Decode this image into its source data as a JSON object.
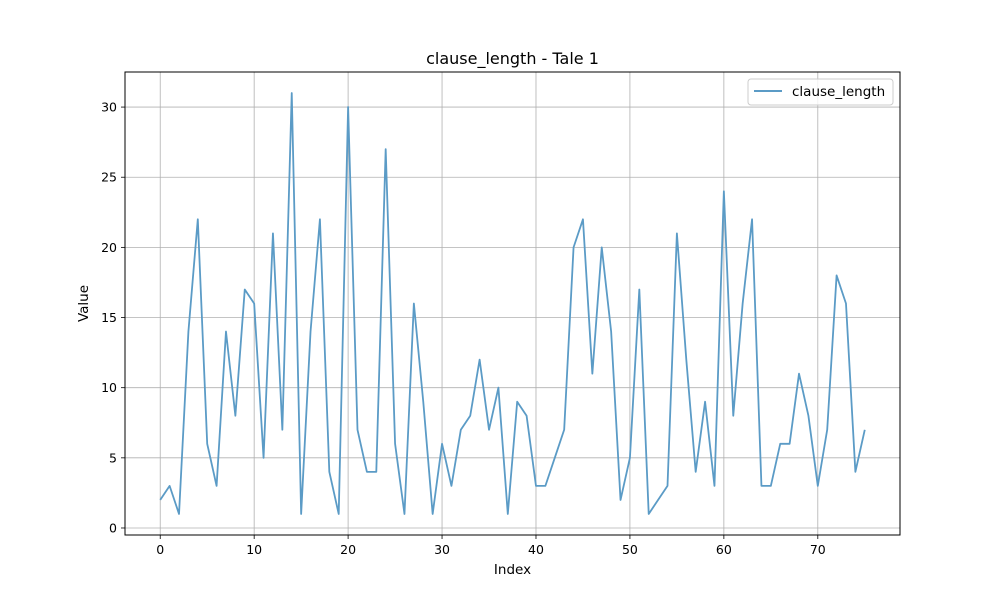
{
  "chart_data": {
    "type": "line",
    "title": "clause_length - Tale 1",
    "xlabel": "Index",
    "ylabel": "Value",
    "xlim": [
      -3.75,
      78.75
    ],
    "ylim": [
      -0.5,
      32.5
    ],
    "xticks": [
      0,
      10,
      20,
      30,
      40,
      50,
      60,
      70
    ],
    "yticks": [
      0,
      5,
      10,
      15,
      20,
      25,
      30
    ],
    "grid": true,
    "legend_position": "top-right",
    "series": [
      {
        "name": "clause_length",
        "color": "#5b9bc6",
        "x": [
          0,
          1,
          2,
          3,
          4,
          5,
          6,
          7,
          8,
          9,
          10,
          11,
          12,
          13,
          14,
          15,
          16,
          17,
          18,
          19,
          20,
          21,
          22,
          23,
          24,
          25,
          26,
          27,
          28,
          29,
          30,
          31,
          32,
          33,
          34,
          35,
          36,
          37,
          38,
          39,
          40,
          41,
          42,
          43,
          44,
          45,
          46,
          47,
          48,
          49,
          50,
          51,
          52,
          53,
          54,
          55,
          56,
          57,
          58,
          59,
          60,
          61,
          62,
          63,
          64,
          65,
          66,
          67,
          68,
          69,
          70,
          71,
          72,
          73,
          74,
          75
        ],
        "values": [
          2,
          3,
          1,
          14,
          22,
          6,
          3,
          14,
          8,
          17,
          16,
          5,
          21,
          7,
          31,
          1,
          14,
          22,
          4,
          1,
          30,
          7,
          4,
          4,
          27,
          6,
          1,
          16,
          9,
          1,
          6,
          3,
          7,
          8,
          12,
          7,
          10,
          1,
          9,
          8,
          3,
          3,
          5,
          7,
          20,
          22,
          11,
          20,
          14,
          2,
          5,
          17,
          1,
          2,
          3,
          21,
          12,
          4,
          9,
          3,
          24,
          8,
          16,
          22,
          3,
          3,
          6,
          6,
          11,
          8,
          3,
          7,
          18,
          16,
          4,
          7
        ]
      }
    ]
  }
}
